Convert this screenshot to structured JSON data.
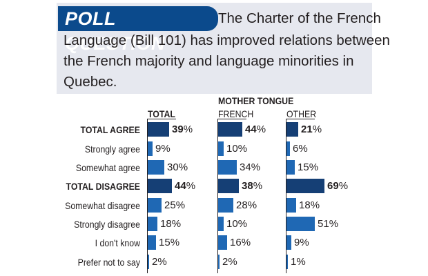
{
  "header": {
    "badge": "POLL QUESTION",
    "question_lines": [
      "The Charter of the French",
      "Language (Bill 101) has improved relations between",
      "the French majority and language minorities in",
      "Quebec."
    ]
  },
  "colors": {
    "header_bg": "#e6e8ef",
    "badge_bg": "#0b4a8c",
    "total_bar": "#153f75",
    "sub_bar": "#1f68b4"
  },
  "chart_data": {
    "type": "bar",
    "group_header": "MOTHER TONGUE",
    "columns": [
      "TOTAL",
      "FRENCH",
      "OTHER"
    ],
    "categories": [
      "TOTAL AGREE",
      "Strongly agree",
      "Somewhat agree",
      "TOTAL DISAGREE",
      "Somewhat disagree",
      "Strongly disagree",
      "I don't know",
      "Prefer not to say"
    ],
    "bold_categories": [
      "TOTAL AGREE",
      "TOTAL DISAGREE"
    ],
    "series": [
      {
        "name": "TOTAL",
        "values": [
          39,
          9,
          30,
          44,
          25,
          18,
          15,
          2
        ]
      },
      {
        "name": "FRENCH",
        "values": [
          44,
          10,
          34,
          38,
          28,
          10,
          16,
          2
        ]
      },
      {
        "name": "OTHER",
        "values": [
          21,
          6,
          15,
          69,
          18,
          51,
          9,
          1
        ]
      }
    ],
    "value_suffix": "%",
    "xlim": [
      0,
      100
    ]
  }
}
